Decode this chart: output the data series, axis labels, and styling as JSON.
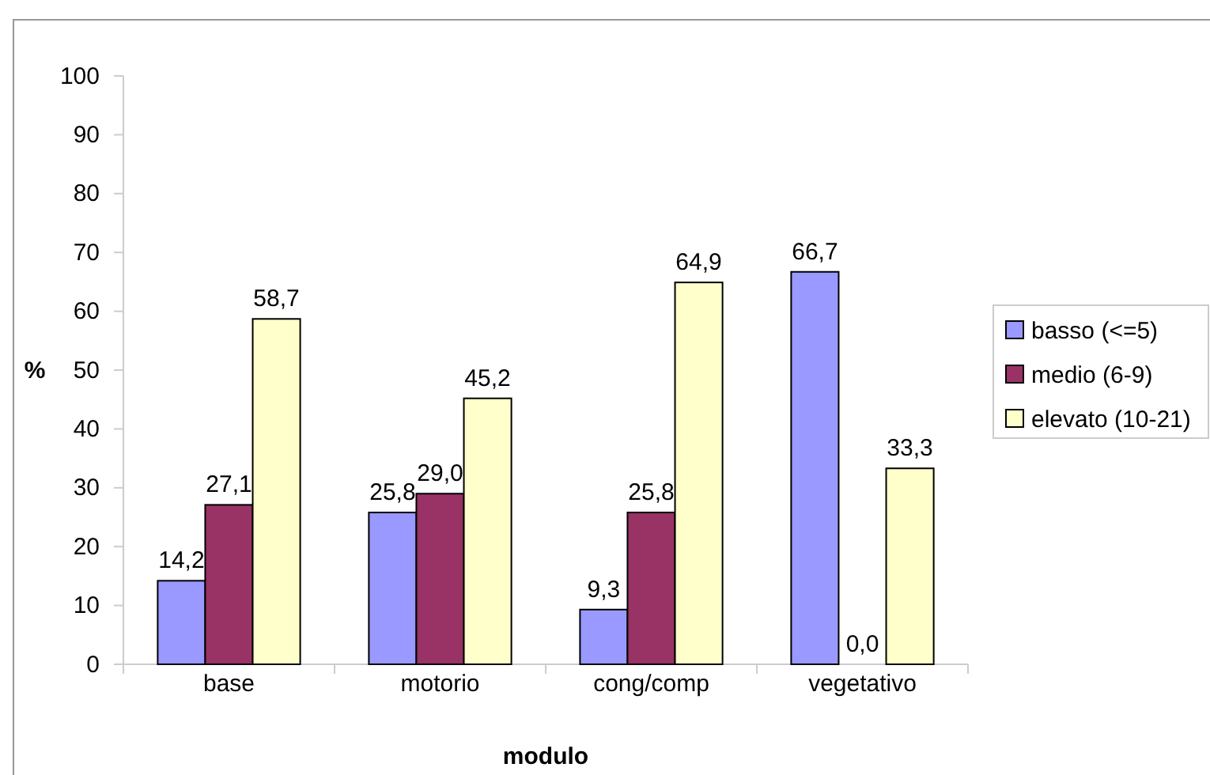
{
  "chart_data": {
    "type": "bar",
    "xlabel": "modulo",
    "ylabel": "%",
    "categories": [
      "base",
      "motorio",
      "cong/comp",
      "vegetativo"
    ],
    "series": [
      {
        "name": "basso (<=5)",
        "color": "#9999ff",
        "values": [
          14.2,
          25.8,
          9.3,
          66.7
        ],
        "value_labels": [
          "14,2",
          "25,8",
          "9,3",
          "66,7"
        ]
      },
      {
        "name": "medio (6-9)",
        "color": "#993366",
        "values": [
          27.1,
          29.0,
          25.8,
          0.0
        ],
        "value_labels": [
          "27,1",
          "29,0",
          "25,8",
          "0,0"
        ]
      },
      {
        "name": "elevato (10-21)",
        "color": "#ffffcc",
        "values": [
          58.7,
          45.2,
          64.9,
          33.3
        ],
        "value_labels": [
          "58,7",
          "45,2",
          "64,9",
          "33,3"
        ]
      }
    ],
    "ylim": [
      0,
      100
    ],
    "yticks": [
      0,
      10,
      20,
      30,
      40,
      50,
      60,
      70,
      80,
      90,
      100
    ],
    "grid": false,
    "legend": "right"
  }
}
